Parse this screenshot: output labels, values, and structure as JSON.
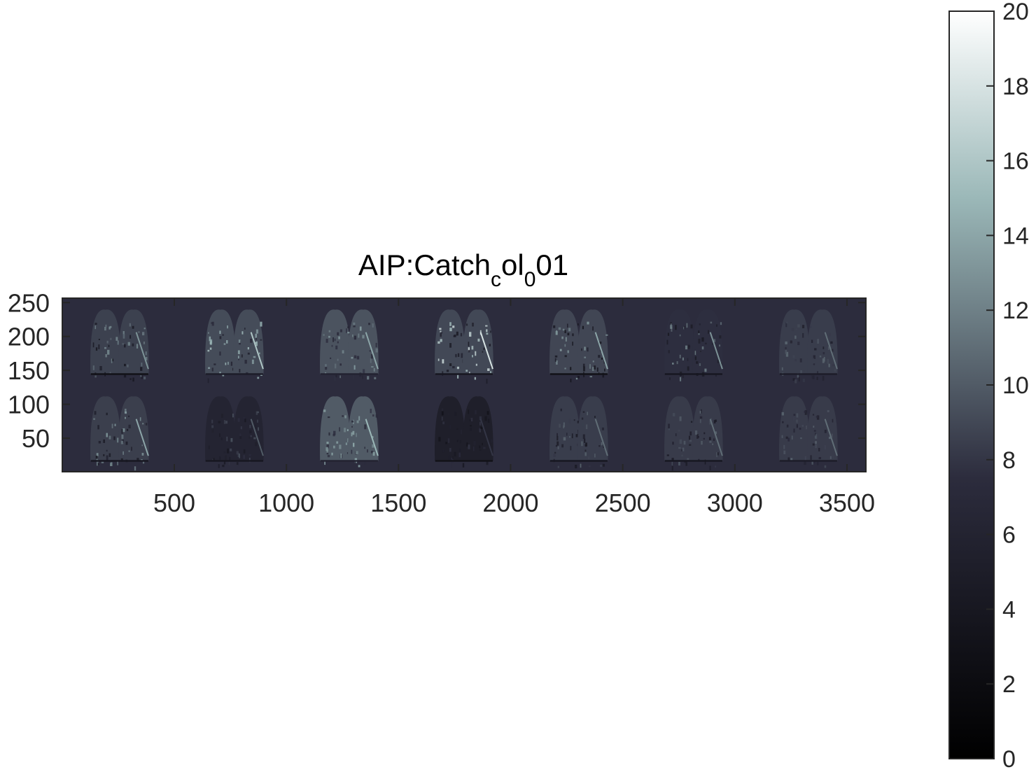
{
  "chart_data": {
    "type": "heatmap",
    "title": {
      "base": "AIP:Catch",
      "sub1": "c",
      "mid": "ol",
      "sub2": "0",
      "tail": "01"
    },
    "image": {
      "x_extent": [
        0,
        3584
      ],
      "y_extent": [
        0,
        256
      ],
      "background_value": 7.5,
      "rows": [
        {
          "y_center": 192,
          "panels": [
            {
              "x_center": 256,
              "mean_value": 8.6,
              "bright_value": 13,
              "dark_value": 3
            },
            {
              "x_center": 768,
              "mean_value": 9.2,
              "bright_value": 16,
              "dark_value": 5
            },
            {
              "x_center": 1280,
              "mean_value": 9.6,
              "bright_value": 14,
              "dark_value": 6
            },
            {
              "x_center": 1792,
              "mean_value": 9.0,
              "bright_value": 18,
              "dark_value": 4
            },
            {
              "x_center": 2304,
              "mean_value": 8.9,
              "bright_value": 14,
              "dark_value": 3
            },
            {
              "x_center": 2816,
              "mean_value": 7.6,
              "bright_value": 13,
              "dark_value": 4
            },
            {
              "x_center": 3328,
              "mean_value": 8.4,
              "bright_value": 11,
              "dark_value": 5
            }
          ]
        },
        {
          "y_center": 64,
          "panels": [
            {
              "x_center": 256,
              "mean_value": 8.5,
              "bright_value": 14,
              "dark_value": 4
            },
            {
              "x_center": 768,
              "mean_value": 6.2,
              "bright_value": 10,
              "dark_value": 4
            },
            {
              "x_center": 1280,
              "mean_value": 10.0,
              "bright_value": 15,
              "dark_value": 6
            },
            {
              "x_center": 1792,
              "mean_value": 5.2,
              "bright_value": 8,
              "dark_value": 3
            },
            {
              "x_center": 2304,
              "mean_value": 8.4,
              "bright_value": 11,
              "dark_value": 4
            },
            {
              "x_center": 2816,
              "mean_value": 8.3,
              "bright_value": 11,
              "dark_value": 4
            },
            {
              "x_center": 3328,
              "mean_value": 8.3,
              "bright_value": 11,
              "dark_value": 5
            }
          ]
        }
      ]
    },
    "x_axis": {
      "ticks": [
        500,
        1000,
        1500,
        2000,
        2500,
        3000,
        3500
      ],
      "tick_labels": [
        "500",
        "1000",
        "1500",
        "2000",
        "2500",
        "3000",
        "3500"
      ],
      "range": [
        0.5,
        3584.5
      ]
    },
    "y_axis": {
      "ticks": [
        250,
        200,
        150,
        100,
        50
      ],
      "tick_labels": [
        "250",
        "200",
        "150",
        "100",
        "50"
      ],
      "range": [
        0.5,
        256.5
      ],
      "direction": "normal"
    },
    "colorbar": {
      "colormap": "bone",
      "range": [
        0,
        20
      ],
      "ticks": [
        0,
        2,
        4,
        6,
        8,
        10,
        12,
        14,
        16,
        18,
        20
      ],
      "tick_labels": [
        "0",
        "2",
        "4",
        "6",
        "8",
        "10",
        "12",
        "14",
        "16",
        "18",
        "20"
      ],
      "location": "right"
    },
    "grid": false
  }
}
